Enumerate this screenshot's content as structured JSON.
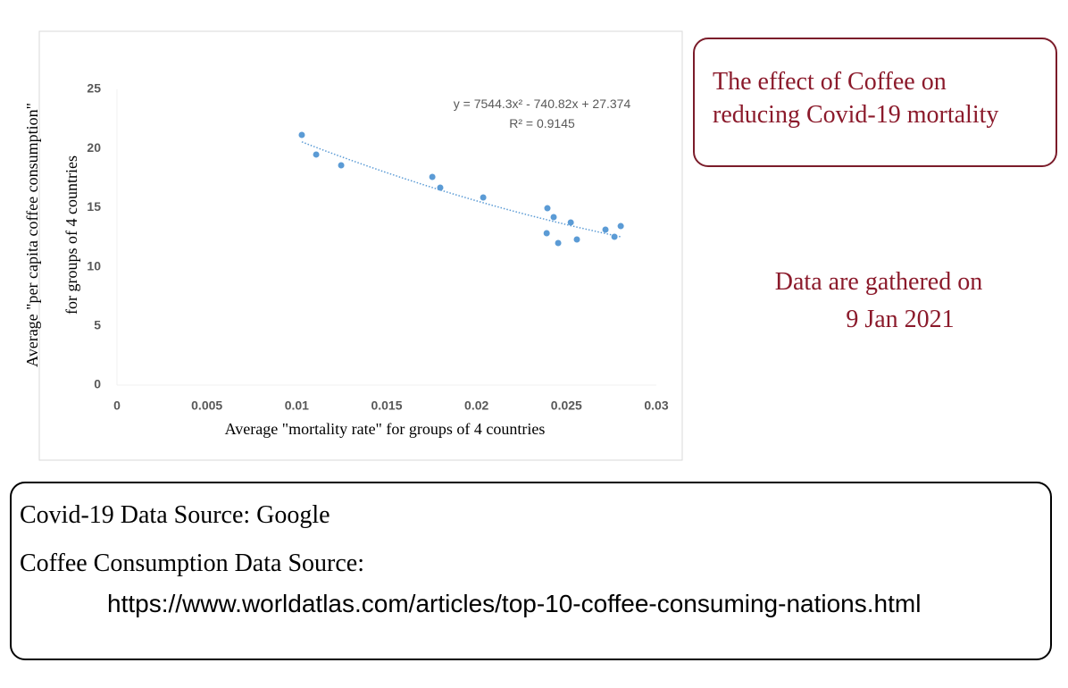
{
  "chart_data": {
    "type": "scatter",
    "xlabel": "Average \"mortality rate\" for groups of 4 countries",
    "ylabel": [
      "Average \"per capita coffee consumption\"",
      "for groups of 4 countries"
    ],
    "x": [
      0.01028,
      0.01108,
      0.01247,
      0.01754,
      0.01798,
      0.02037,
      0.02394,
      0.02429,
      0.0239,
      0.02454,
      0.02524,
      0.02558,
      0.02717,
      0.02767,
      0.02802
    ],
    "values": [
      21.15,
      19.49,
      18.58,
      17.6,
      16.69,
      15.86,
      14.95,
      14.2,
      12.84,
      12.01,
      13.75,
      12.31,
      13.14,
      12.54,
      13.44
    ],
    "color": "#5b9bd5",
    "xlim": [
      0,
      0.03
    ],
    "xticks": [
      0,
      0.005,
      0.01,
      0.015,
      0.02,
      0.025,
      0.03
    ],
    "ylim": [
      0,
      25
    ],
    "yticks": [
      0,
      5,
      10,
      15,
      20,
      25
    ],
    "grid": false,
    "trendline": {
      "type": "polynomial",
      "coefficients": [
        27.374,
        -740.82,
        7544.3
      ],
      "equation": "y = 7544.3x² - 740.82x + 27.374",
      "r2_label": "R² = 0.9145"
    }
  },
  "title_box": {
    "lines": [
      "The effect of Coffee on",
      "reducing Covid-19 mortality"
    ]
  },
  "note": {
    "lines": [
      "Data are gathered on",
      "9 Jan 2021"
    ]
  },
  "sources": {
    "lines": [
      "Covid-19 Data Source: Google",
      "Coffee Consumption Data Source:"
    ],
    "url": "https://www.worldatlas.com/articles/top-10-coffee-consuming-nations.html"
  }
}
